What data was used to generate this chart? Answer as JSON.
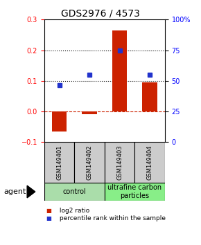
{
  "title": "GDS2976 / 4573",
  "samples": [
    "GSM149401",
    "GSM149402",
    "GSM149403",
    "GSM149404"
  ],
  "log2_ratio": [
    -0.065,
    -0.01,
    0.265,
    0.095
  ],
  "percentile_rank": [
    0.085,
    0.12,
    0.2,
    0.12
  ],
  "ylim_left": [
    -0.1,
    0.3
  ],
  "ylim_right": [
    0,
    100
  ],
  "bar_color": "#cc2200",
  "dot_color": "#2233cc",
  "hline_color": "#cc2200",
  "dotted_lines": [
    0.1,
    0.2
  ],
  "groups": [
    {
      "label": "control",
      "cols": [
        0,
        1
      ],
      "color": "#aaddaa"
    },
    {
      "label": "ultrafine carbon\nparticles",
      "cols": [
        2,
        3
      ],
      "color": "#88ee88"
    }
  ],
  "agent_label": "agent",
  "legend": [
    {
      "color": "#cc2200",
      "label": " log2 ratio"
    },
    {
      "color": "#2233cc",
      "label": " percentile rank within the sample"
    }
  ],
  "left_yticks": [
    -0.1,
    0.0,
    0.1,
    0.2,
    0.3
  ],
  "right_yticks": [
    0,
    25,
    50,
    75,
    100
  ],
  "right_yticklabels": [
    "0",
    "25",
    "50",
    "75",
    "100%"
  ],
  "bar_width": 0.5,
  "dot_size": 4,
  "title_fontsize": 10,
  "tick_fontsize": 7,
  "label_fontsize": 6.5,
  "sample_fontsize": 6,
  "group_fontsize": 7
}
